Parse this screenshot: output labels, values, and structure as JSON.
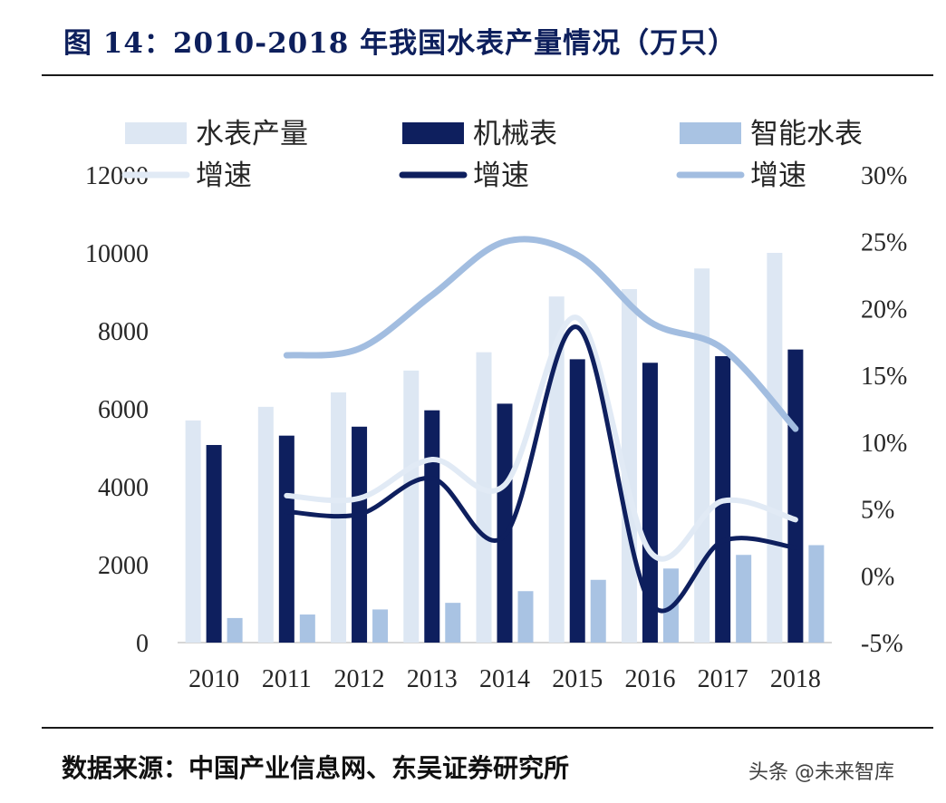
{
  "header": {
    "title": "图 14：2010-2018 年我国水表产量情况（万只）"
  },
  "footer": {
    "source": "数据来源：中国产业信息网、东吴证券研究所",
    "watermark": "头条 @未来智库"
  },
  "colors": {
    "total": "#dde7f3",
    "mechanical": "#0e1f5e",
    "smart": "#a9c3e3"
  },
  "chart_data": {
    "type": "bar",
    "categories": [
      "2010",
      "2011",
      "2012",
      "2013",
      "2014",
      "2015",
      "2016",
      "2017",
      "2018"
    ],
    "series": [
      {
        "name": "水表产量",
        "kind": "bar",
        "axis": "left",
        "color": "#dde7f3",
        "values": [
          5700,
          6050,
          6420,
          6980,
          7450,
          8880,
          9070,
          9600,
          10000
        ]
      },
      {
        "name": "机械表",
        "kind": "bar",
        "axis": "left",
        "color": "#0e1f5e",
        "values": [
          5070,
          5310,
          5540,
          5960,
          6130,
          7270,
          7180,
          7350,
          7520
        ]
      },
      {
        "name": "智能水表",
        "kind": "bar",
        "axis": "left",
        "color": "#a9c3e3",
        "values": [
          630,
          720,
          850,
          1020,
          1320,
          1610,
          1900,
          2250,
          2500
        ]
      },
      {
        "name": "增速",
        "kind": "line",
        "axis": "right",
        "color": "#e1eaf5",
        "values": [
          null,
          0.06,
          0.058,
          0.087,
          0.068,
          0.193,
          0.018,
          0.056,
          0.042
        ]
      },
      {
        "name": "增速",
        "kind": "line",
        "axis": "right",
        "color": "#0e1f5e",
        "values": [
          null,
          0.048,
          0.046,
          0.073,
          0.03,
          0.186,
          -0.02,
          0.026,
          0.021
        ]
      },
      {
        "name": "增速",
        "kind": "line",
        "axis": "right",
        "color": "#a2bde0",
        "values": [
          null,
          0.165,
          0.17,
          0.21,
          0.25,
          0.24,
          0.19,
          0.17,
          0.11
        ]
      }
    ],
    "y_left": {
      "min": 0,
      "max": 12000,
      "ticks": [
        "0",
        "2000",
        "4000",
        "6000",
        "8000",
        "10000",
        "12000"
      ]
    },
    "y_right": {
      "min": -0.05,
      "max": 0.3,
      "ticks": [
        "-5%",
        "0%",
        "5%",
        "10%",
        "15%",
        "20%",
        "25%",
        "30%"
      ]
    },
    "legend": {
      "placement": "top",
      "items": [
        {
          "label": "水表产量",
          "type": "bar",
          "color": "#dde7f3"
        },
        {
          "label": "机械表",
          "type": "bar",
          "color": "#0e1f5e"
        },
        {
          "label": "智能水表",
          "type": "bar",
          "color": "#a9c3e3"
        },
        {
          "label": "增速",
          "type": "line",
          "color": "#e1eaf5"
        },
        {
          "label": "增速",
          "type": "line",
          "color": "#0e1f5e"
        },
        {
          "label": "增速",
          "type": "line",
          "color": "#a2bde0"
        }
      ]
    },
    "grid": false
  }
}
